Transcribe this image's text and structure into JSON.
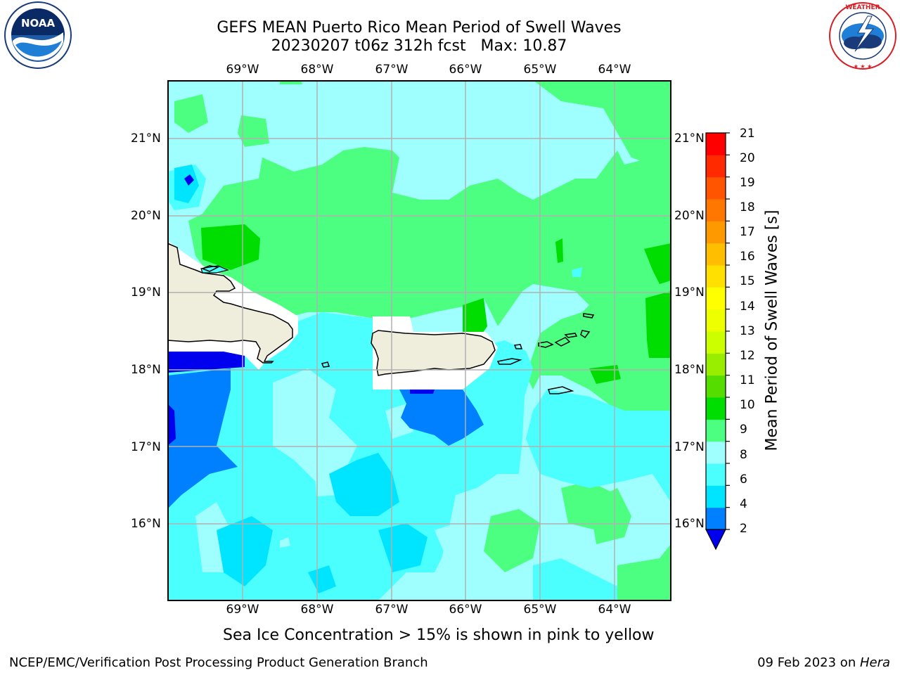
{
  "title": {
    "line1": "GEFS MEAN Puerto Rico Mean Period of Swell Waves",
    "line2": "20230207 t06z 312h fcst   Max: 10.87"
  },
  "logos": {
    "left": {
      "name": "NOAA",
      "text": "NOAA",
      "ring_text": "NATIONAL OCEANIC AND ATMOSPHERIC ADMINISTRATION · U.S. DEPARTMENT OF COMMERCE"
    },
    "right": {
      "name": "National Weather Service",
      "ring_text": "NATIONAL WEATHER SERVICE"
    }
  },
  "map": {
    "lon_labels": [
      "69°W",
      "68°W",
      "67°W",
      "66°W",
      "65°W",
      "64°W"
    ],
    "lat_labels": [
      "21°N",
      "20°N",
      "19°N",
      "18°N",
      "17°N",
      "16°N"
    ],
    "lon_range": [
      -70.0,
      -63.25
    ],
    "lat_range": [
      15.0,
      21.75
    ],
    "field_max": 10.87,
    "gridlines": true
  },
  "colorbar": {
    "label": "Mean Period of Swell Waves [s]",
    "ticks": [
      "21",
      "20",
      "19",
      "18",
      "17",
      "16",
      "15",
      "14",
      "13",
      "12",
      "11",
      "10",
      "9",
      "8",
      "6",
      "4",
      "2"
    ],
    "colors": [
      "#0000ee",
      "#0080ff",
      "#00e5ff",
      "#4cffff",
      "#9fffff",
      "#4dff80",
      "#00dd00",
      "#55dd00",
      "#99ee00",
      "#ccff00",
      "#eeff00",
      "#ffff00",
      "#ffe000",
      "#ffbf00",
      "#ff9900",
      "#ff7700",
      "#ff5500",
      "#ff2a00",
      "#ff0000"
    ]
  },
  "footer": {
    "ice_note": "Sea Ice Concentration > 15% is shown in pink to yellow",
    "left": "NCEP/EMC/Verification Post Processing Product Generation Branch",
    "date": "09 Feb 2023 on ",
    "host": "Hera"
  }
}
